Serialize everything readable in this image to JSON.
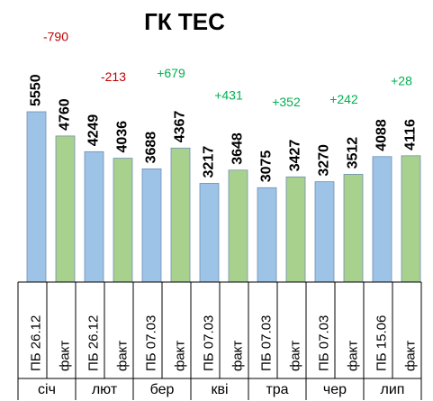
{
  "chart_data": {
    "type": "bar",
    "title": "ГК ТЕС",
    "categories": [
      "січ",
      "лют",
      "бер",
      "кві",
      "тра",
      "чер",
      "лип"
    ],
    "sub_labels": [
      [
        "ПБ 26.12",
        "факт"
      ],
      [
        "ПБ 26.12",
        "факт"
      ],
      [
        "ПБ 07.03",
        "факт"
      ],
      [
        "ПБ 07.03",
        "факт"
      ],
      [
        "ПБ 07.03",
        "факт"
      ],
      [
        "ПБ 07.03",
        "факт"
      ],
      [
        "ПБ 15.06",
        "факт"
      ]
    ],
    "series": [
      {
        "color": "#9dc3e6",
        "values": [
          5550,
          4249,
          3688,
          3217,
          3075,
          3270,
          4088
        ]
      },
      {
        "color": "#a9d18e",
        "values": [
          4760,
          4036,
          4367,
          3648,
          3427,
          3512,
          4116
        ]
      }
    ],
    "differences": {
      "values": [
        -790,
        -213,
        679,
        431,
        352,
        242,
        28
      ],
      "value_labels": [
        "-790",
        "-213",
        "+679",
        "+431",
        "+352",
        "+242",
        "+28"
      ],
      "negative_color": "#c00000",
      "positive_color": "#00b050"
    }
  }
}
